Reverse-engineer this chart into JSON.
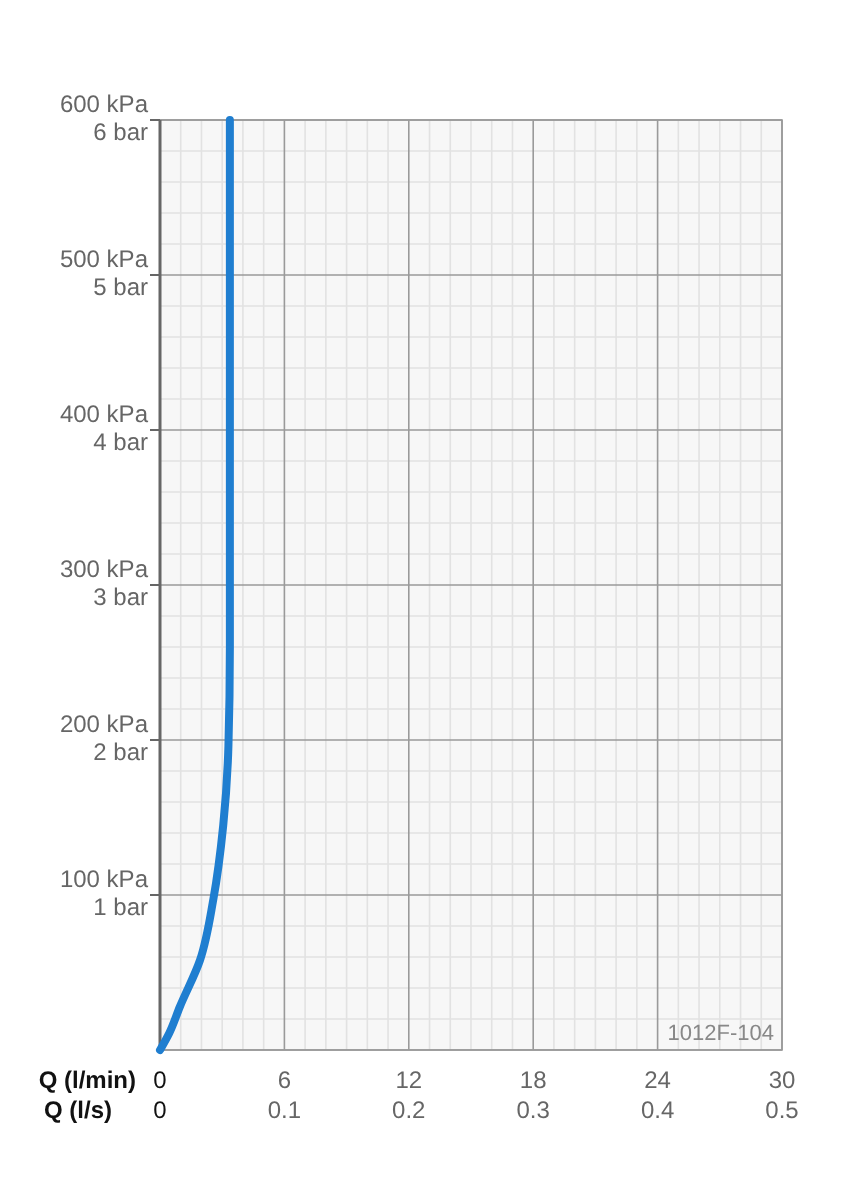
{
  "chart_data": {
    "type": "line",
    "xlabel": "Q (l/min)",
    "x2label": "Q (l/s)",
    "xlim": [
      0,
      30
    ],
    "xticks": [
      0,
      6,
      12,
      18,
      24,
      30
    ],
    "x2lim": [
      0,
      0.5
    ],
    "x2ticks": [
      0,
      0.1,
      0.2,
      0.3,
      0.4,
      0.5
    ],
    "ylim": [
      0,
      600
    ],
    "yticks": [
      {
        "value": 0,
        "label": null
      },
      {
        "value": 100,
        "label": "100 kPa"
      },
      {
        "value": 200,
        "label": "200 kPa"
      },
      {
        "value": 300,
        "label": "300 kPa"
      },
      {
        "value": 400,
        "label": "400 kPa"
      },
      {
        "value": 500,
        "label": "500 kPa"
      },
      {
        "value": 600,
        "label": "600 kPa"
      }
    ],
    "y2lim": [
      0,
      6
    ],
    "y2ticks": [
      {
        "value": 1,
        "label": "1 bar"
      },
      {
        "value": 2,
        "label": "2 bar"
      },
      {
        "value": 3,
        "label": "3 bar"
      },
      {
        "value": 4,
        "label": "4 bar"
      },
      {
        "value": 5,
        "label": "5 bar"
      },
      {
        "value": 6,
        "label": "6 bar"
      }
    ],
    "grid": true,
    "marker": "none",
    "line_style": "solid",
    "series": [
      {
        "color": "#1f7ed0",
        "x": [
          0,
          0.45,
          0.96,
          1.93,
          2.57,
          3.05,
          3.3,
          3.37,
          3.37
        ],
        "values": [
          0,
          11,
          28,
          58,
          97,
          145,
          196,
          260,
          600
        ]
      }
    ],
    "annotations": [
      "1012F-104"
    ]
  }
}
